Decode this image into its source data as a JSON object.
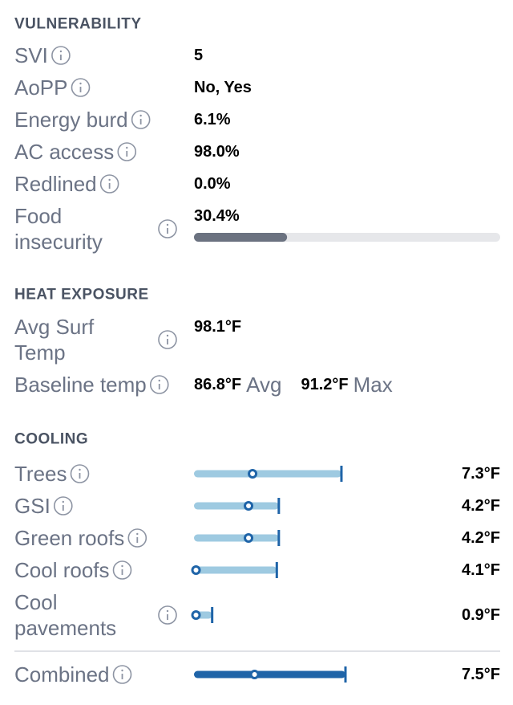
{
  "vulnerability": {
    "title": "VULNERABILITY",
    "rows": [
      {
        "label": "SVI",
        "value": 5
      },
      {
        "label": "AoPP",
        "value": "No, Yes"
      },
      {
        "label": "Energy burd",
        "value": "6.1%"
      },
      {
        "label": "AC access",
        "value": "98.0%"
      },
      {
        "label": "Redlined",
        "value": "0.0%"
      },
      {
        "label": [
          "Food",
          "insecurity"
        ],
        "value": 30.4,
        "value_label": "30.4%",
        "max": 100
      }
    ]
  },
  "heat_exposure": {
    "title": "HEAT EXPOSURE",
    "rows": [
      {
        "label": [
          "Avg Surf",
          "Temp"
        ],
        "value": "98.1°F"
      },
      {
        "label": "Baseline temp",
        "avg": "86.8°F",
        "avg_label": "Avg",
        "max": "91.2°F",
        "max_label": "Max"
      }
    ]
  },
  "cooling": {
    "title": "COOLING",
    "xlim": [
      0,
      10
    ],
    "rows": [
      {
        "label": "Trees",
        "mean": 2.9,
        "value": 7.3,
        "value_label": "7.3°F"
      },
      {
        "label": "GSI",
        "mean": 2.7,
        "value": 4.2,
        "value_label": "4.2°F"
      },
      {
        "label": "Green roofs",
        "mean": 2.7,
        "value": 4.2,
        "value_label": "4.2°F"
      },
      {
        "label": "Cool roofs",
        "mean": 0.1,
        "value": 4.1,
        "value_label": "4.1°F"
      },
      {
        "label": [
          "Cool",
          "pavements"
        ],
        "mean": 0.1,
        "value": 0.9,
        "value_label": "0.9°F"
      }
    ],
    "total": {
      "label": "Combined",
      "mean": 3.0,
      "value": 7.5,
      "value_label": "7.5°F"
    }
  }
}
